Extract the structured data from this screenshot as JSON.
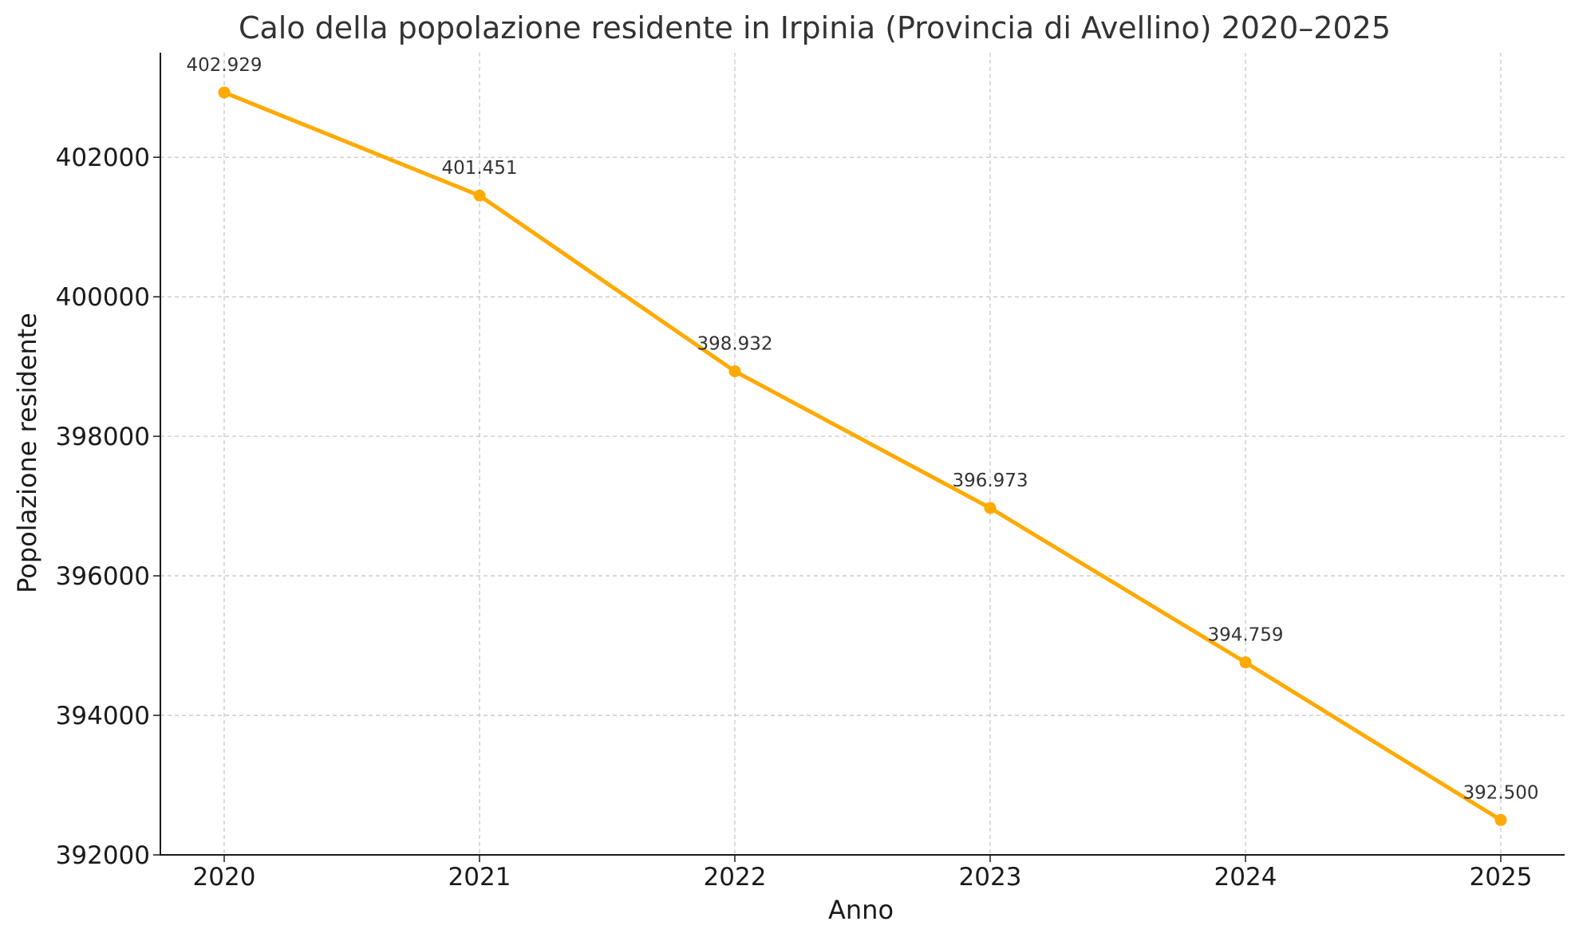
{
  "chart_data": {
    "type": "line",
    "title": "Calo della popolazione residente in Irpinia (Provincia di Avellino) 2020–2025",
    "xlabel": "Anno",
    "ylabel": "Popolazione residente",
    "x": [
      "2020",
      "2021",
      "2022",
      "2023",
      "2024",
      "2025"
    ],
    "series": [
      {
        "values": [
          402929,
          401451,
          398932,
          396973,
          394759,
          392500
        ],
        "point_labels": [
          "402.929",
          "401.451",
          "398.932",
          "396.973",
          "394.759",
          "392.500"
        ]
      }
    ],
    "y_ticks": [
      392000,
      394000,
      396000,
      398000,
      400000,
      402000
    ],
    "y_tick_labels": [
      "392000",
      "394000",
      "396000",
      "398000",
      "400000",
      "402000"
    ],
    "ylim": [
      392000,
      403500
    ],
    "grid": true,
    "legend": "none",
    "colors": {
      "line": "#FFAA00",
      "grid": "#c8c8c8",
      "axis": "#1a1a1a",
      "title": "#333333"
    }
  }
}
